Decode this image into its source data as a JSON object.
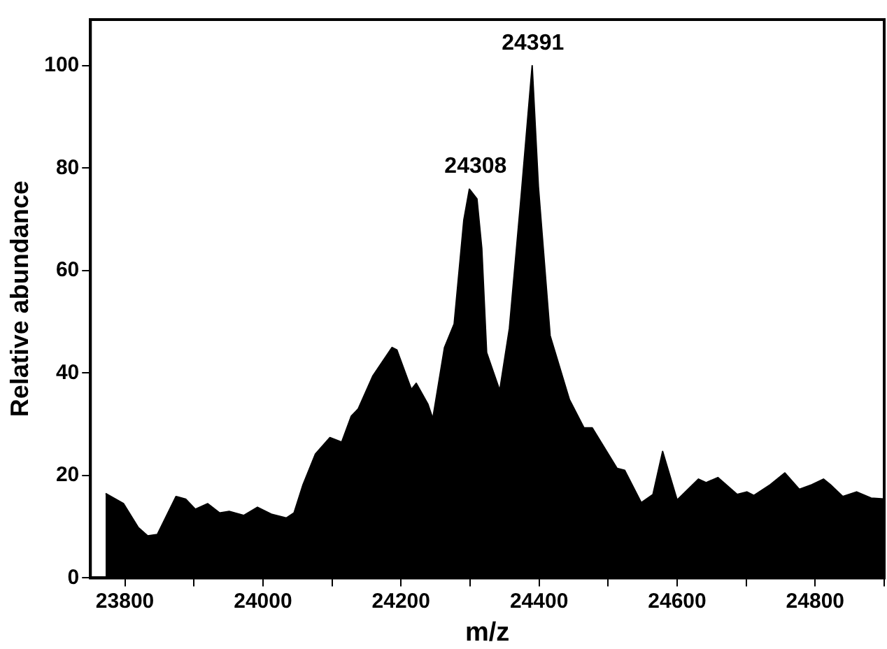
{
  "chart_data": {
    "type": "area",
    "xlabel": "m/z",
    "ylabel": "Relative abundance",
    "color": "#000000",
    "x": [
      23772,
      23798,
      23819,
      23833,
      23847,
      23874,
      23888,
      23902,
      23920,
      23937,
      23951,
      23972,
      23992,
      24013,
      24034,
      24045,
      24058,
      24076,
      24097,
      24114,
      24128,
      24138,
      24159,
      24187,
      24194,
      24215,
      24222,
      24239,
      24246,
      24263,
      24277,
      24291,
      24299,
      24310,
      24317,
      24324,
      24343,
      24357,
      24374,
      24390,
      24399,
      24416,
      24444,
      24465,
      24477,
      24513,
      24524,
      24548,
      24565,
      24579,
      24600,
      24631,
      24642,
      24659,
      24687,
      24701,
      24711,
      24735,
      24756,
      24777,
      24795,
      24812,
      24822,
      24840,
      24860,
      24881,
      24900
    ],
    "values": [
      16.5,
      14.5,
      9.9,
      8.2,
      8.5,
      15.9,
      15.4,
      13.4,
      14.5,
      12.7,
      13.0,
      12.2,
      13.8,
      12.4,
      11.7,
      12.7,
      18.2,
      24.2,
      27.4,
      26.5,
      31.6,
      33,
      39.4,
      45,
      44.5,
      36.8,
      38,
      33.9,
      31.1,
      45,
      49.6,
      69.9,
      75.9,
      74,
      64.3,
      44,
      36.6,
      48.7,
      74.5,
      100,
      76.4,
      47.3,
      34.8,
      29.3,
      29.3,
      21.4,
      21,
      14.7,
      16.3,
      24.7,
      15.2,
      19.3,
      18.6,
      19.6,
      16.3,
      16.8,
      16.1,
      18.2,
      20.5,
      17.3,
      18.2,
      19.3,
      18.2,
      15.9,
      16.8,
      15.6,
      15.4
    ],
    "xlim": [
      23750,
      24900
    ],
    "xticks": [
      23800,
      {
        "value": 23900,
        "label": null
      },
      24000,
      {
        "value": 24100,
        "label": null
      },
      24200,
      {
        "value": 24300,
        "label": null
      },
      24400,
      {
        "value": 24500,
        "label": null
      },
      24600,
      {
        "value": 24700,
        "label": null
      },
      24800,
      {
        "value": 24900,
        "label": null
      }
    ],
    "ylim": [
      0,
      109
    ],
    "yticks": [
      0,
      20,
      40,
      60,
      80,
      100
    ],
    "grid": false,
    "legend": false,
    "marker": "none",
    "line_style": "solid",
    "annotations": [
      {
        "text": "24308",
        "x": 24308,
        "y": 76
      },
      {
        "text": "24391",
        "x": 24391,
        "y": 100
      }
    ]
  }
}
